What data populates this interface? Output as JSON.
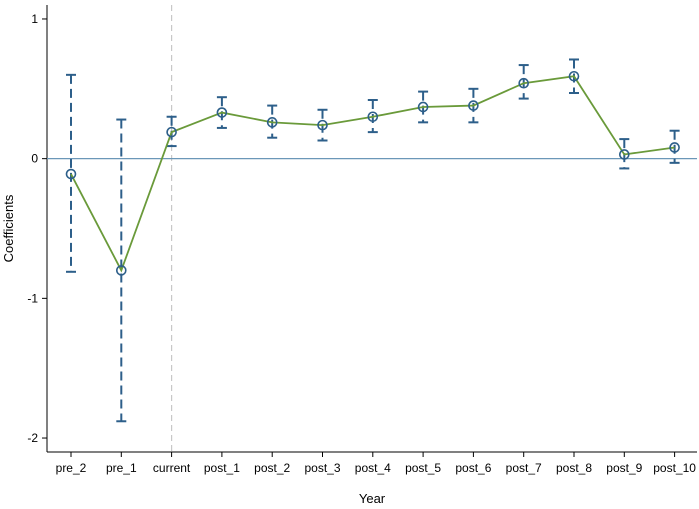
{
  "chart_data": {
    "type": "line",
    "xlabel": "Year",
    "ylabel": "Coefficients",
    "categories": [
      "pre_2",
      "pre_1",
      "current",
      "post_1",
      "post_2",
      "post_3",
      "post_4",
      "post_5",
      "post_6",
      "post_7",
      "post_8",
      "post_9",
      "post_10"
    ],
    "values": [
      -0.11,
      -0.8,
      0.19,
      0.33,
      0.26,
      0.24,
      0.3,
      0.37,
      0.38,
      0.54,
      0.59,
      0.03,
      0.08
    ],
    "ci_low": [
      -0.81,
      -1.88,
      0.09,
      0.22,
      0.15,
      0.13,
      0.19,
      0.26,
      0.26,
      0.43,
      0.47,
      -0.07,
      -0.03
    ],
    "ci_high": [
      0.6,
      0.28,
      0.3,
      0.44,
      0.38,
      0.35,
      0.42,
      0.48,
      0.5,
      0.67,
      0.71,
      0.14,
      0.2
    ],
    "ylim": [
      -2.1,
      1.1
    ],
    "yticks": [
      1,
      0,
      -1,
      -2
    ],
    "ytick_labels": [
      "1",
      "0",
      "-1",
      "-2"
    ],
    "reference_line_y": 0,
    "vertical_marker_category": "current",
    "grid": false,
    "colors": {
      "line": "#6a9a3a",
      "marker": "#2d5f8a",
      "ci": "#2d5f8a",
      "zero_line": "#6b97b8",
      "vertical_marker": "#c8c8c8",
      "axis": "#000000"
    }
  }
}
